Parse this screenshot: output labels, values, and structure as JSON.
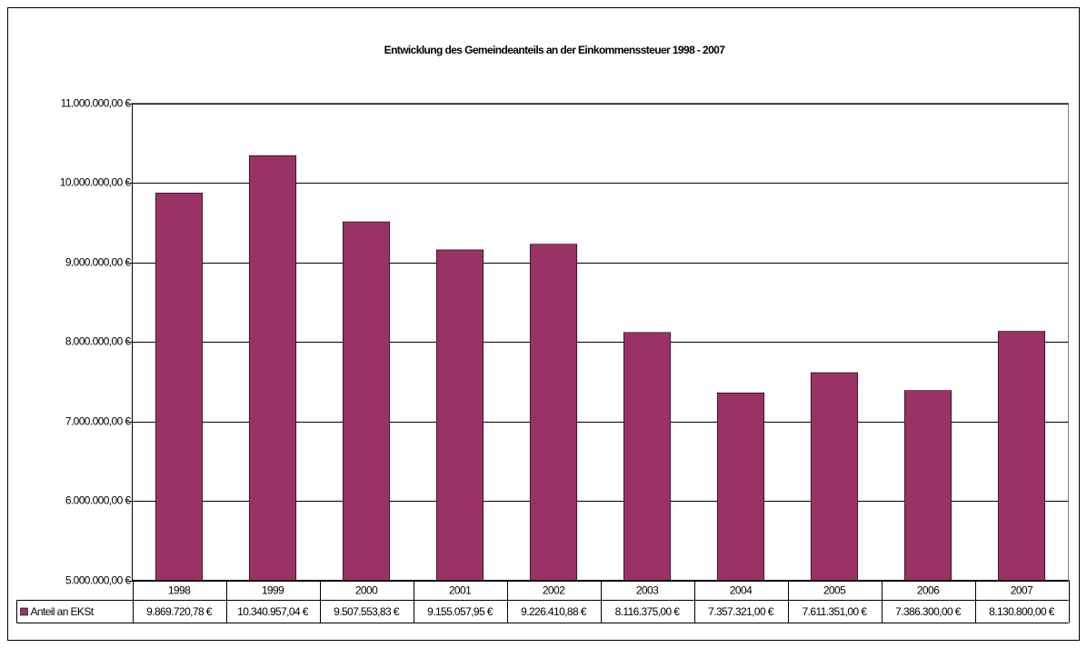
{
  "chart_data": {
    "type": "bar",
    "title": "Entwicklung des Gemeindeanteils an der Einkommenssteuer 1998 - 2007",
    "categories": [
      "1998",
      "1999",
      "2000",
      "2001",
      "2002",
      "2003",
      "2004",
      "2005",
      "2006",
      "2007"
    ],
    "series": [
      {
        "name": "Anteil an EKSt",
        "color": "#993366",
        "values": [
          9869720.78,
          10340957.04,
          9507553.83,
          9155057.95,
          9226410.88,
          8116375.0,
          7357321.0,
          7611351.0,
          7386300.0,
          8130800.0
        ],
        "value_labels": [
          "9.869.720,78 €",
          "10.340.957,04 €",
          "9.507.553,83 €",
          "9.155.057,95 €",
          "9.226.410,88 €",
          "8.116.375,00 €",
          "7.357.321,00 €",
          "7.611.351,00 €",
          "7.386.300,00 €",
          "8.130.800,00 €"
        ]
      }
    ],
    "ylim": [
      5000000,
      11000000
    ],
    "yticks": [
      {
        "value": 5000000,
        "label": "5.000.000,00 €"
      },
      {
        "value": 6000000,
        "label": "6.000.000,00 €"
      },
      {
        "value": 7000000,
        "label": "7.000.000,00 €"
      },
      {
        "value": 8000000,
        "label": "8.000.000,00 €"
      },
      {
        "value": 9000000,
        "label": "9.000.000,00 €"
      },
      {
        "value": 10000000,
        "label": "10.000.000,00 €"
      },
      {
        "value": 11000000,
        "label": "11.000.000,00 €"
      }
    ],
    "grid": true
  }
}
